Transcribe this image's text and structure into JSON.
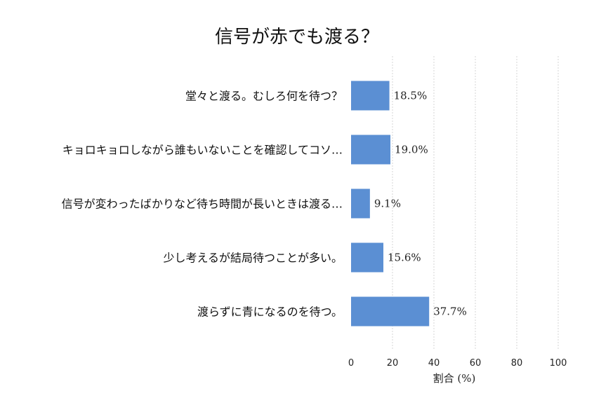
{
  "chart_data": {
    "type": "bar",
    "orientation": "horizontal",
    "title": "信号が赤でも渡る？",
    "xlabel": "割合 (%)",
    "ylabel": "",
    "xlim": [
      0,
      100
    ],
    "xticks": [
      "0",
      "20",
      "40",
      "60",
      "80",
      "100"
    ],
    "grid": true,
    "categories": [
      "堂々と渡る。むしろ何を待つ？",
      "キョロキョロしながら誰もいないことを確認してコソ…",
      "信号が変わったばかりなど待ち時間が長いときは渡る…",
      "少し考えるが結局待つことが多い。",
      "渡らずに青になるのを待つ。"
    ],
    "values": [
      18.5,
      19.0,
      9.1,
      15.6,
      37.7
    ],
    "value_labels": [
      "18.5%",
      "19.0%",
      "9.1%",
      "15.6%",
      "37.7%"
    ],
    "bar_color": "#5b8fd3"
  }
}
